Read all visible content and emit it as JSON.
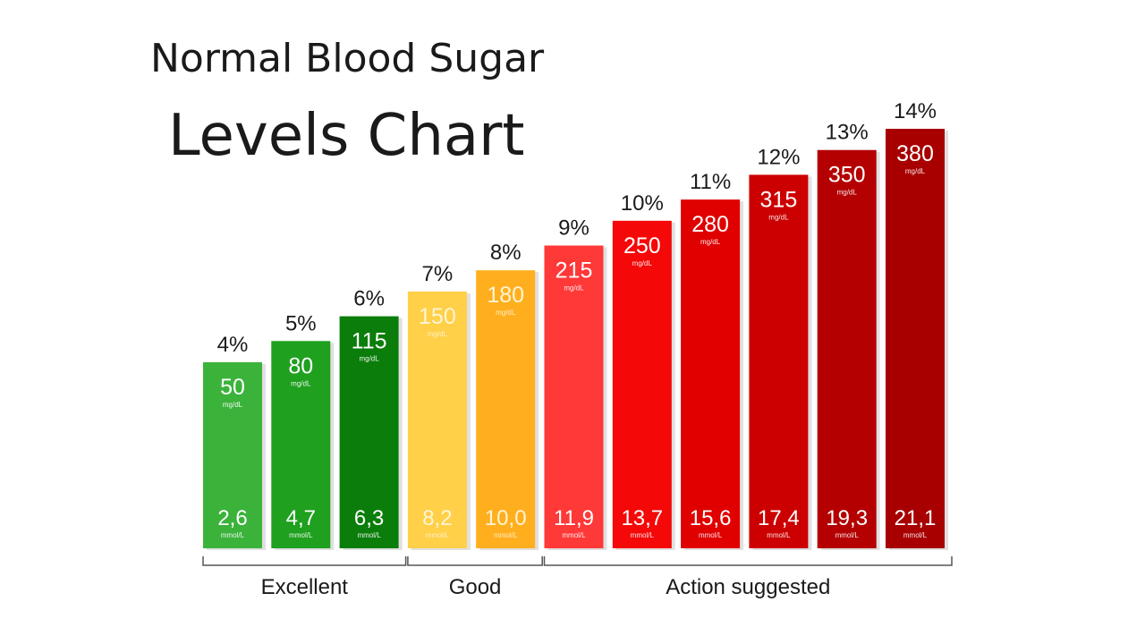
{
  "title": {
    "line1": "Normal Blood Sugar",
    "line2": "Levels Chart"
  },
  "chart_data": {
    "type": "bar",
    "title": "Normal Blood Sugar Levels Chart",
    "categories": [
      "4%",
      "5%",
      "6%",
      "7%",
      "8%",
      "9%",
      "10%",
      "11%",
      "12%",
      "13%",
      "14%"
    ],
    "series": [
      {
        "values": [
          50,
          80,
          115,
          150,
          180,
          215,
          250,
          280,
          315,
          350,
          380
        ]
      }
    ],
    "value_labels": [
      "50",
      "80",
      "115",
      "150",
      "180",
      "215",
      "250",
      "280",
      "315",
      "350",
      "380"
    ],
    "value_unit": "mg/dL",
    "mmol_labels": [
      "2,6",
      "4,7",
      "6,3",
      "8,2",
      "10,0",
      "11,9",
      "13,7",
      "15,6",
      "17,4",
      "19,3",
      "21,1"
    ],
    "mmol_unit": "mmol/L",
    "colors": [
      "#3bb33b",
      "#1fa01f",
      "#0b7d0b",
      "#ffd048",
      "#ffaf1e",
      "#ff3838",
      "#f50808",
      "#e00000",
      "#cc0000",
      "#b40000",
      "#a80000"
    ],
    "groups": [
      {
        "label": "Excellent",
        "start": 0,
        "end": 2
      },
      {
        "label": "Good",
        "start": 3,
        "end": 4
      },
      {
        "label": "Action suggested",
        "start": 5,
        "end": 10
      }
    ],
    "ylim": [
      0,
      400
    ],
    "grid": false,
    "legend": "none"
  }
}
